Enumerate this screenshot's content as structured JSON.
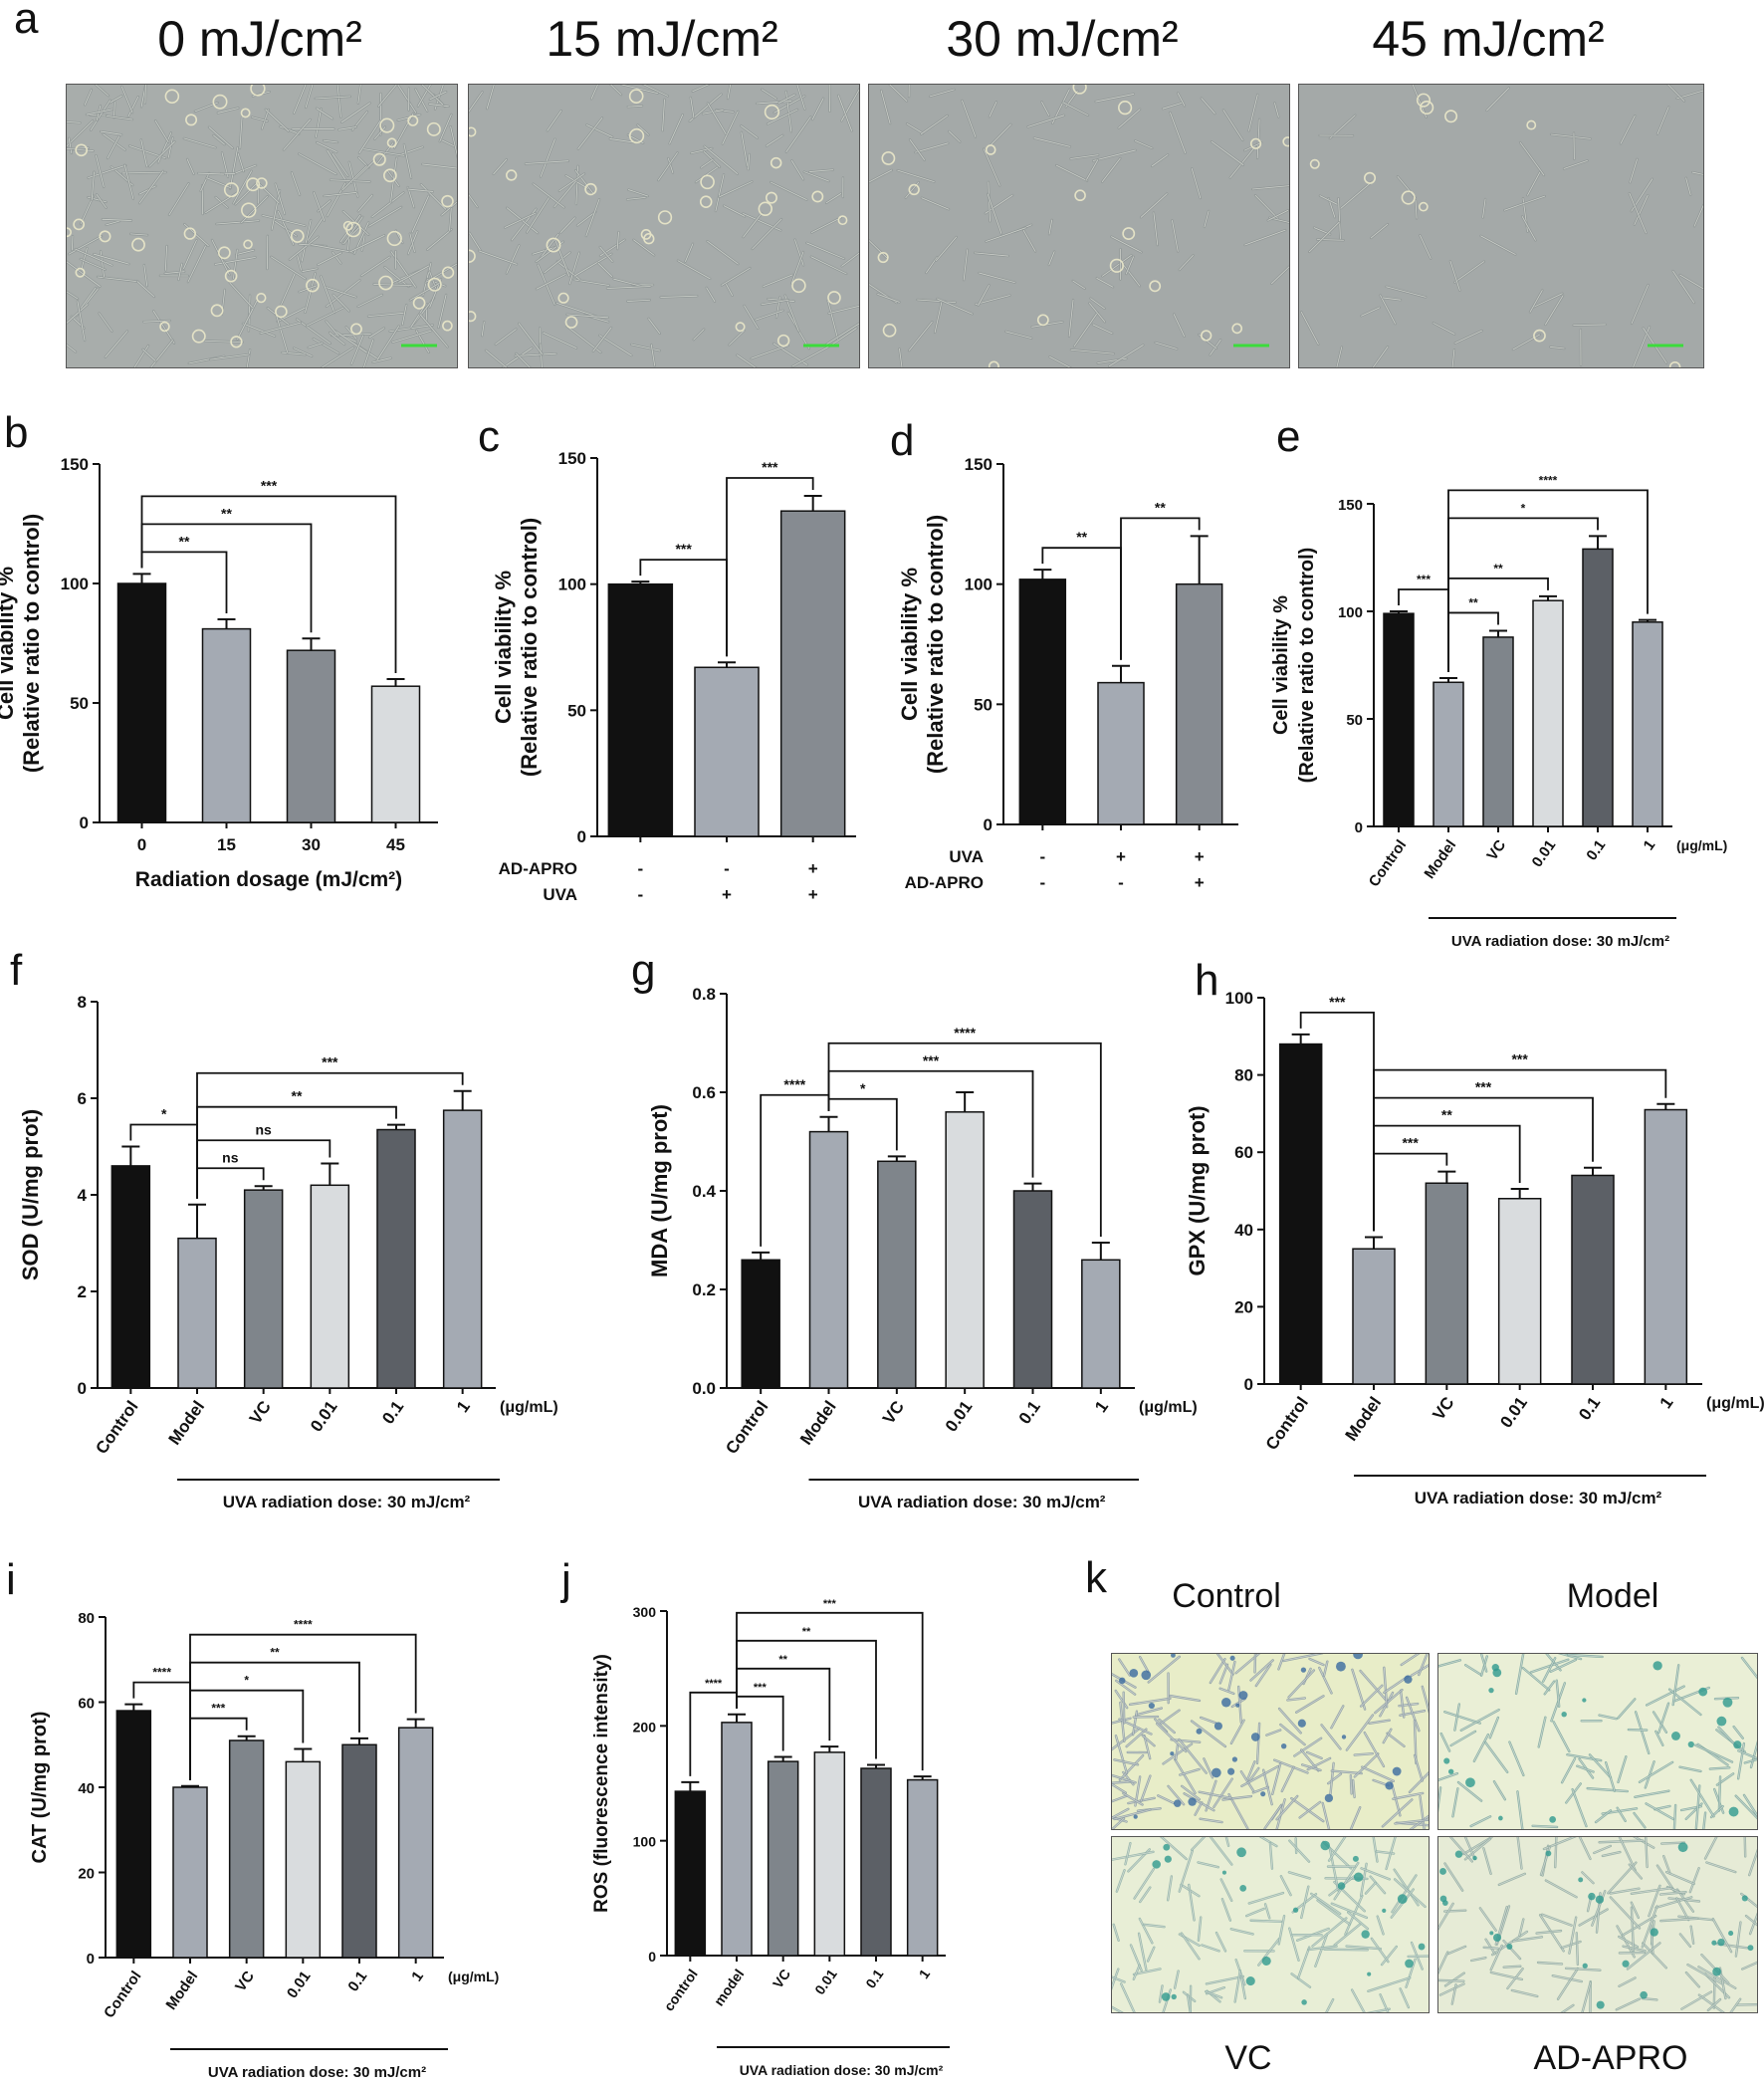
{
  "panels": {
    "a": "a",
    "b": "b",
    "c": "c",
    "d": "d",
    "e": "e",
    "f": "f",
    "g": "g",
    "h": "h",
    "i": "i",
    "j": "j",
    "k": "k"
  },
  "photos_a": [
    "0 mJ/cm²",
    "15 mJ/cm²",
    "30 mJ/cm²",
    "45 mJ/cm²"
  ],
  "photos_k": [
    "Control",
    "Model",
    "VC",
    "AD-APRO"
  ],
  "chart_data": [
    {
      "id": "b",
      "type": "bar",
      "ylabel": [
        "Cell viability %",
        "(Relative ratio to control)"
      ],
      "xlabel": "Radiation dosage (mJ/cm²)",
      "categories": [
        "0",
        "15",
        "30",
        "45"
      ],
      "values": [
        100,
        81,
        72,
        57
      ],
      "errors": [
        4,
        4,
        5,
        3
      ],
      "colors": [
        "#111111",
        "#a4aab3",
        "#868b91",
        "#d9dcde"
      ],
      "ylim": [
        0,
        150
      ],
      "yticks": [
        "0",
        "50",
        "100",
        "150"
      ],
      "sig": [
        {
          "from": 0,
          "to": 1,
          "label": "**"
        },
        {
          "from": 0,
          "to": 2,
          "label": "**"
        },
        {
          "from": 0,
          "to": 3,
          "label": "***"
        }
      ]
    },
    {
      "id": "c",
      "type": "bar",
      "ylabel": [
        "Cell viability %",
        "(Relative ratio to control)"
      ],
      "categories": [
        "",
        "",
        ""
      ],
      "values": [
        100,
        67,
        129
      ],
      "errors": [
        1,
        2,
        6
      ],
      "colors": [
        "#111111",
        "#a4aab3",
        "#868b91"
      ],
      "ylim": [
        0,
        150
      ],
      "yticks": [
        "0",
        "50",
        "100",
        "150"
      ],
      "row_labels": [
        {
          "label": "AD-APRO",
          "marks": [
            "-",
            "-",
            "+"
          ]
        },
        {
          "label": "UVA",
          "marks": [
            "-",
            "+",
            "+"
          ]
        }
      ],
      "sig": [
        {
          "from": 0,
          "to": 1,
          "label": "***"
        },
        {
          "from": 1,
          "to": 2,
          "label": "***"
        }
      ]
    },
    {
      "id": "d",
      "type": "bar",
      "ylabel": [
        "Cell viability %",
        "(Relative ratio to control)"
      ],
      "categories": [
        "",
        "",
        ""
      ],
      "values": [
        102,
        59,
        100
      ],
      "errors": [
        4,
        7,
        20
      ],
      "colors": [
        "#111111",
        "#a4aab3",
        "#868b91"
      ],
      "ylim": [
        0,
        150
      ],
      "yticks": [
        "0",
        "50",
        "100",
        "150"
      ],
      "row_labels": [
        {
          "label": "UVA",
          "marks": [
            "-",
            "+",
            "+"
          ]
        },
        {
          "label": "AD-APRO",
          "marks": [
            "-",
            "-",
            "+"
          ]
        }
      ],
      "sig": [
        {
          "from": 0,
          "to": 1,
          "label": "**"
        },
        {
          "from": 1,
          "to": 2,
          "label": "**"
        }
      ]
    },
    {
      "id": "e",
      "type": "bar",
      "ylabel": [
        "Cell viability %",
        "(Relative ratio to control)"
      ],
      "categories": [
        "Control",
        "Model",
        "VC",
        "0.01",
        "0.1",
        "1"
      ],
      "unit": "(μg/mL)",
      "xlabel": "UVA  radiation dose: 30 mJ/cm²",
      "values": [
        99,
        67,
        88,
        105,
        129,
        95
      ],
      "errors": [
        1,
        2,
        3,
        2,
        6,
        1
      ],
      "colors": [
        "#111111",
        "#a4aab3",
        "#7f858b",
        "#d9dcde",
        "#5c6066",
        "#a4aab3"
      ],
      "ylim": [
        0,
        150
      ],
      "yticks": [
        "0",
        "50",
        "100",
        "150"
      ],
      "sig": [
        {
          "from": 0,
          "to": 1,
          "label": "***"
        },
        {
          "from": 1,
          "to": 2,
          "label": "**"
        },
        {
          "from": 1,
          "to": 3,
          "label": "**"
        },
        {
          "from": 1,
          "to": 4,
          "label": "*"
        },
        {
          "from": 1,
          "to": 5,
          "label": "****"
        }
      ]
    },
    {
      "id": "f",
      "type": "bar",
      "ylabel": [
        "SOD (U/mg prot)"
      ],
      "categories": [
        "Control",
        "Model",
        "VC",
        "0.01",
        "0.1",
        "1"
      ],
      "unit": "(μg/mL)",
      "xlabel": "UVA  radiation dose: 30 mJ/cm²",
      "values": [
        4.6,
        3.1,
        4.1,
        4.2,
        5.35,
        5.75
      ],
      "errors": [
        0.4,
        0.7,
        0.08,
        0.45,
        0.1,
        0.4
      ],
      "colors": [
        "#111111",
        "#a4aab3",
        "#7f858b",
        "#d9dcde",
        "#5c6066",
        "#a4aab3"
      ],
      "ylim": [
        0,
        8
      ],
      "yticks": [
        "0",
        "2",
        "4",
        "6",
        "8"
      ],
      "sig": [
        {
          "from": 0,
          "to": 1,
          "label": "*"
        },
        {
          "from": 1,
          "to": 2,
          "label": "ns"
        },
        {
          "from": 1,
          "to": 3,
          "label": "ns"
        },
        {
          "from": 1,
          "to": 4,
          "label": "**"
        },
        {
          "from": 1,
          "to": 5,
          "label": "***"
        }
      ]
    },
    {
      "id": "g",
      "type": "bar",
      "ylabel": [
        "MDA (U/mg prot)"
      ],
      "categories": [
        "Control",
        "Model",
        "VC",
        "0.01",
        "0.1",
        "1"
      ],
      "unit": "(μg/mL)",
      "xlabel": "UVA  radiation dose: 30 mJ/cm²",
      "values": [
        0.26,
        0.52,
        0.46,
        0.56,
        0.4,
        0.26
      ],
      "errors": [
        0.015,
        0.03,
        0.01,
        0.04,
        0.015,
        0.035
      ],
      "colors": [
        "#111111",
        "#a4aab3",
        "#7f858b",
        "#d9dcde",
        "#5c6066",
        "#a4aab3"
      ],
      "ylim": [
        0,
        0.8
      ],
      "yticks": [
        "0.0",
        "0.2",
        "0.4",
        "0.6",
        "0.8"
      ],
      "sig": [
        {
          "from": 0,
          "to": 1,
          "label": "****"
        },
        {
          "from": 1,
          "to": 2,
          "label": "*"
        },
        {
          "from": 1,
          "to": 4,
          "label": "***"
        },
        {
          "from": 1,
          "to": 5,
          "label": "****"
        }
      ]
    },
    {
      "id": "h",
      "type": "bar",
      "ylabel": [
        "GPX (U/mg prot)"
      ],
      "categories": [
        "Control",
        "Model",
        "VC",
        "0.01",
        "0.1",
        "1"
      ],
      "unit": "(μg/mL)",
      "xlabel": "UVA  radiation dose: 30 mJ/cm²",
      "values": [
        88,
        35,
        52,
        48,
        54,
        71
      ],
      "errors": [
        2.5,
        3,
        3,
        2.5,
        2,
        1.5
      ],
      "colors": [
        "#111111",
        "#a4aab3",
        "#7f858b",
        "#d9dcde",
        "#5c6066",
        "#a4aab3"
      ],
      "ylim": [
        0,
        100
      ],
      "yticks": [
        "0",
        "20",
        "40",
        "60",
        "80",
        "100"
      ],
      "sig": [
        {
          "from": 0,
          "to": 1,
          "label": "***"
        },
        {
          "from": 1,
          "to": 2,
          "label": "***"
        },
        {
          "from": 1,
          "to": 3,
          "label": "**"
        },
        {
          "from": 1,
          "to": 4,
          "label": "***"
        },
        {
          "from": 1,
          "to": 5,
          "label": "***"
        }
      ]
    },
    {
      "id": "i",
      "type": "bar",
      "ylabel": [
        "CAT (U/mg prot)"
      ],
      "categories": [
        "Control",
        "Model",
        "VC",
        "0.01",
        "0.1",
        "1"
      ],
      "unit": "(μg/mL)",
      "xlabel": "UVA  radiation dose: 30 mJ/cm²",
      "values": [
        58,
        40,
        51,
        46,
        50,
        54
      ],
      "errors": [
        1.5,
        0.3,
        1,
        3,
        1.5,
        2
      ],
      "colors": [
        "#111111",
        "#a4aab3",
        "#7f858b",
        "#d9dcde",
        "#5c6066",
        "#a4aab3"
      ],
      "ylim": [
        0,
        80
      ],
      "yticks": [
        "0",
        "20",
        "40",
        "60",
        "80"
      ],
      "sig": [
        {
          "from": 0,
          "to": 1,
          "label": "****"
        },
        {
          "from": 1,
          "to": 2,
          "label": "***"
        },
        {
          "from": 1,
          "to": 3,
          "label": "*"
        },
        {
          "from": 1,
          "to": 4,
          "label": "**"
        },
        {
          "from": 1,
          "to": 5,
          "label": "****"
        }
      ]
    },
    {
      "id": "j",
      "type": "bar",
      "ylabel": [
        "ROS (fluorescence intensity)"
      ],
      "categories": [
        "control",
        "model",
        "VC",
        "0.01",
        "0.1",
        "1"
      ],
      "xlabel": "UVA  radiation dose: 30 mJ/cm²",
      "values": [
        143,
        203,
        169,
        177,
        163,
        153
      ],
      "errors": [
        8,
        7,
        4,
        5,
        3,
        3
      ],
      "colors": [
        "#111111",
        "#a4aab3",
        "#7f858b",
        "#d9dcde",
        "#5c6066",
        "#a4aab3"
      ],
      "ylim": [
        0,
        300
      ],
      "yticks": [
        "0",
        "100",
        "200",
        "300"
      ],
      "sig": [
        {
          "from": 0,
          "to": 1,
          "label": "****"
        },
        {
          "from": 1,
          "to": 2,
          "label": "***"
        },
        {
          "from": 1,
          "to": 3,
          "label": "**"
        },
        {
          "from": 1,
          "to": 4,
          "label": "**"
        },
        {
          "from": 1,
          "to": 5,
          "label": "***"
        }
      ]
    }
  ]
}
